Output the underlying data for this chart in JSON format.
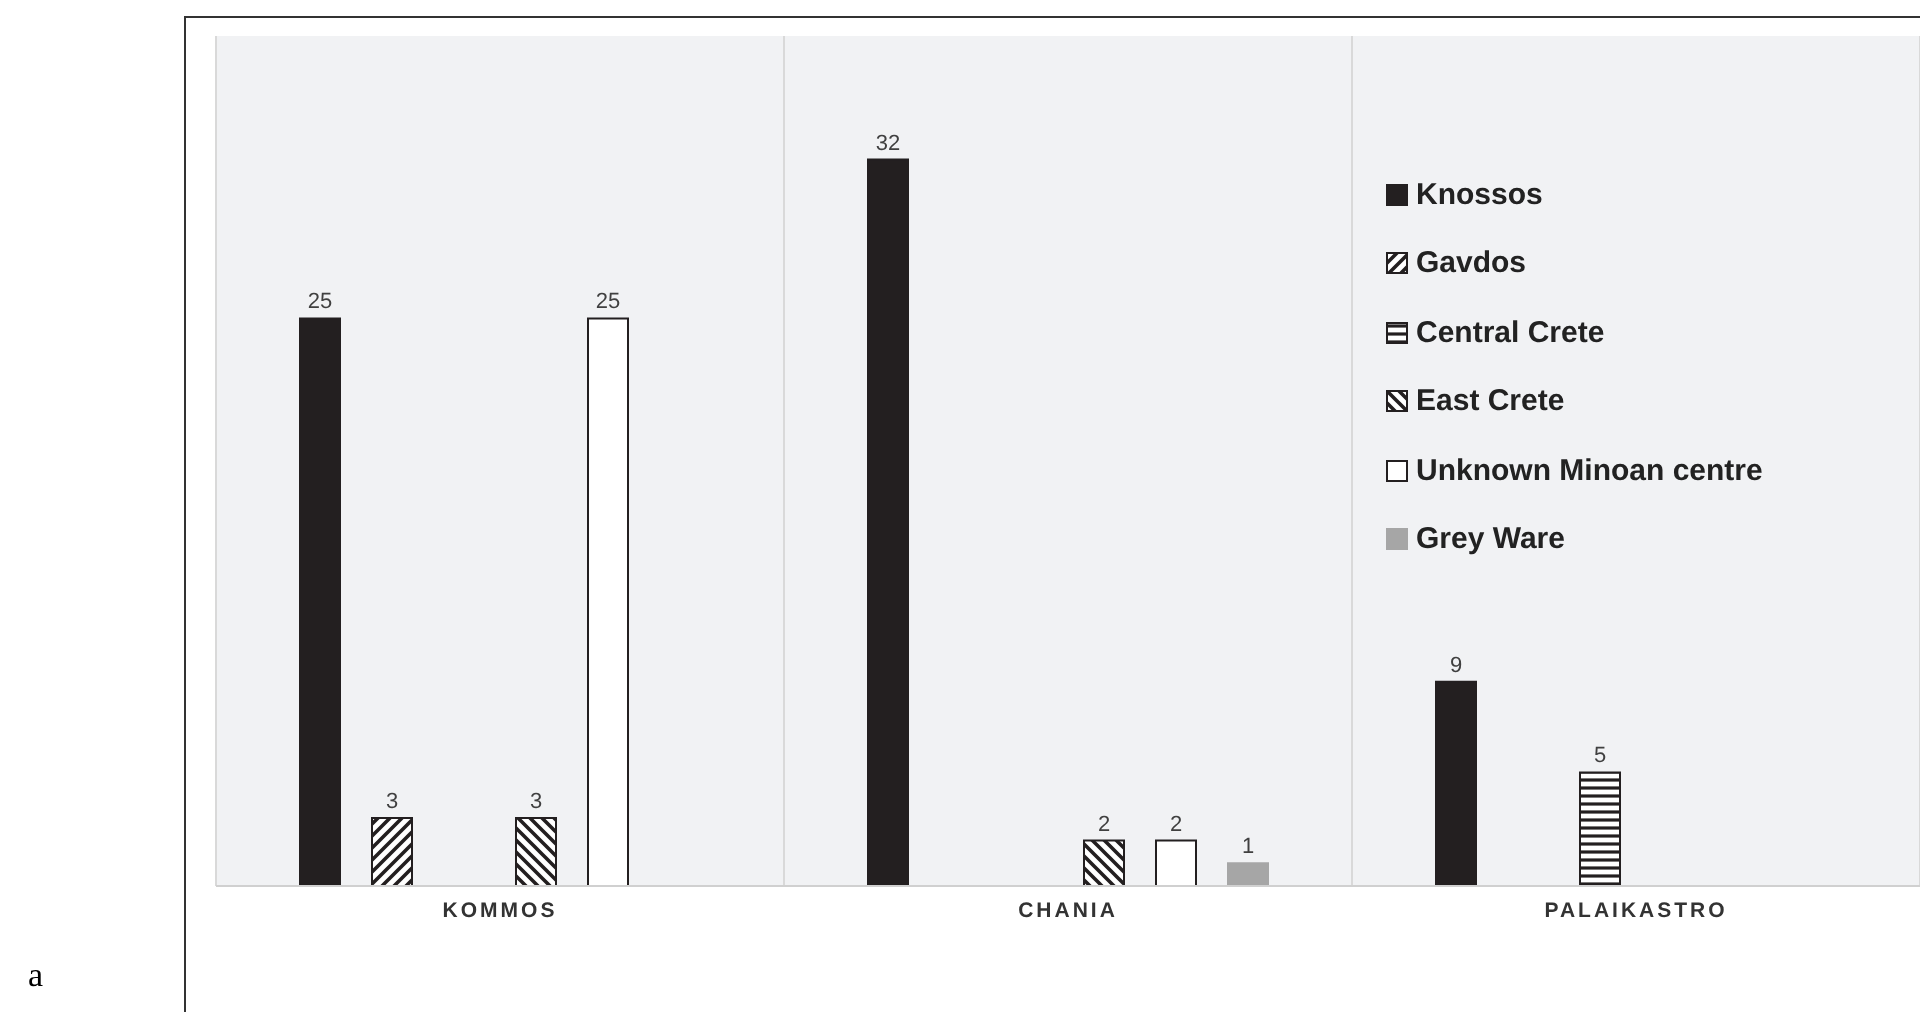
{
  "chart_data": {
    "type": "bar",
    "categories": [
      "KOMMOS",
      "CHANIA",
      "PALAIKASTRO"
    ],
    "series": [
      {
        "name": "Knossos",
        "color": "#231f20",
        "values": [
          25,
          32,
          9
        ]
      },
      {
        "name": "Gavdos",
        "color": "#231f20",
        "values": [
          3,
          null,
          null
        ]
      },
      {
        "name": "Central Crete",
        "color": "#231f20",
        "values": [
          null,
          null,
          5
        ]
      },
      {
        "name": "East Crete",
        "color": "#231f20",
        "values": [
          3,
          2,
          null
        ]
      },
      {
        "name": "Unknown Minoan centre",
        "color": "#ffffff",
        "values": [
          25,
          2,
          null
        ]
      },
      {
        "name": "Grey Ware",
        "color": "#a6a6a6",
        "values": [
          null,
          1,
          null
        ]
      }
    ],
    "data_labels": true,
    "legend": "top right",
    "grid": "x",
    "annotations": [
      "a"
    ]
  }
}
